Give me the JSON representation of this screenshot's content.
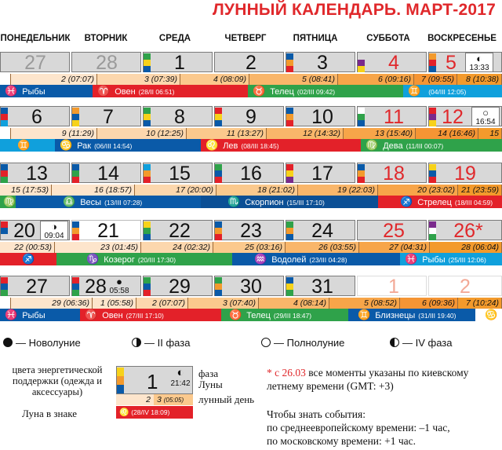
{
  "title": "ЛУННЫЙ КАЛЕНДАРЬ. МАРТ-2017",
  "weekdays": [
    "ПОНЕДЕЛЬНИК",
    "ВТОРНИК",
    "СРЕДА",
    "ЧЕТВЕРГ",
    "ПЯТНИЦА",
    "СУББОТА",
    "ВОСКРЕСЕНЬЕ"
  ],
  "colors": {
    "orange": "#f39a2c",
    "red": "#e32129",
    "green": "#2fa24a",
    "blue": "#0a5aa8",
    "light_blue": "#10a0dc",
    "yellow": "#f7d21a",
    "purple": "#7a2a8c",
    "gray_cell": "#d8d8d8"
  },
  "weeks": [
    {
      "days": [
        "27",
        "28",
        "1",
        "2",
        "3",
        "4",
        "5"
      ],
      "phase": {
        "icon": "waxing-first-quarter-icon",
        "time": "13:33"
      },
      "lunar_days": [
        "2 (07:07)",
        "3 (07:39)",
        "4 (08:09)",
        "5 (08:41)",
        "6 (09:16)",
        "7 (09:55)",
        "8 (10:38)"
      ],
      "zodiac": [
        {
          "sym": "♓",
          "name": "Рыбы",
          "time": ""
        },
        {
          "sym": "♈",
          "name": "Овен",
          "time": "(28/II 06:51)"
        },
        {
          "sym": "♉",
          "name": "Телец",
          "time": "(02/III 09:42)"
        },
        {
          "sym": "♊",
          "name": "",
          "time": "(04/III 12:05)"
        }
      ]
    },
    {
      "days": [
        "6",
        "7",
        "8",
        "9",
        "10",
        "11",
        "12"
      ],
      "phase": {
        "icon": "full-moon-icon",
        "time": "16:54"
      },
      "lunar_days": [
        "9 (11:29)",
        "10 (12:25)",
        "11 (13:27)",
        "12 (14:32)",
        "13 (15:40)",
        "14 (16:46)",
        "15"
      ],
      "zodiac": [
        {
          "sym": "♊",
          "name": "",
          "time": ""
        },
        {
          "sym": "♋",
          "name": "Рак",
          "time": "(06/III 14:54)"
        },
        {
          "sym": "♌",
          "name": "Лев",
          "time": "(08/III 18:45)"
        },
        {
          "sym": "♍",
          "name": "Дева",
          "time": "(11/III 00:07)"
        }
      ]
    },
    {
      "days": [
        "13",
        "14",
        "15",
        "16",
        "17",
        "18",
        "19"
      ],
      "lunar_days": [
        "15 (17:53)",
        "16 (18:57)",
        "17 (20:00)",
        "18 (21:02)",
        "19 (22:03)",
        "20 (23:02)",
        "21 (23:59)"
      ],
      "zodiac": [
        {
          "sym": "♍",
          "name": "",
          "time": ""
        },
        {
          "sym": "♎",
          "name": "Весы",
          "time": "(13/III 07:28)"
        },
        {
          "sym": "♏",
          "name": "Скорпион",
          "time": "(15/III 17:10)"
        },
        {
          "sym": "♐",
          "name": "Стрелец",
          "time": "(18/III 04:59)"
        }
      ]
    },
    {
      "days": [
        "20",
        "21",
        "22",
        "23",
        "24",
        "25",
        "26*"
      ],
      "phase": {
        "icon": "last-quarter-icon",
        "time": "09:04"
      },
      "lunar_days": [
        "22 (00:53)",
        "23 (01:45)",
        "24 (02:32)",
        "25 (03:16)",
        "26 (03:55)",
        "27 (04:31)",
        "28 (06:04)"
      ],
      "zodiac": [
        {
          "sym": "♐",
          "name": "",
          "time": ""
        },
        {
          "sym": "♑",
          "name": "Козерог",
          "time": "(20/III 17:30)"
        },
        {
          "sym": "♒",
          "name": "Водолей",
          "time": "(23/III 04:28)"
        },
        {
          "sym": "♓",
          "name": "Рыбы",
          "time": "(25/III 12:06)"
        }
      ]
    },
    {
      "days": [
        "27",
        "28",
        "29",
        "30",
        "31",
        "1",
        "2"
      ],
      "phase": {
        "icon": "new-moon-icon",
        "time": "05:58"
      },
      "lunar_days": [
        "29 (06:36)",
        "1 (05:58)",
        "2 (07:07)",
        "3 (07:40)",
        "4 (08:14)",
        "5 (08:52)",
        "6 (09:36)",
        "7 (10:24)"
      ],
      "zodiac": [
        {
          "sym": "♓",
          "name": "Рыбы",
          "time": ""
        },
        {
          "sym": "♈",
          "name": "Овен",
          "time": "(27/III 17:10)"
        },
        {
          "sym": "♉",
          "name": "Телец",
          "time": "(29/III 18:47)"
        },
        {
          "sym": "♊",
          "name": "Близнецы",
          "time": "(31/III 19:40)"
        },
        {
          "sym": "♋",
          "name": "",
          "time": ""
        }
      ]
    }
  ],
  "legend": {
    "new_moon": "— Новолуние",
    "second_phase": "— II фаза",
    "full_moon": "— Полнолуние",
    "fourth_phase": "— IV фаза"
  },
  "key": {
    "energy_colors": "цвета энергетической поддержки (одежда и аксессуары)",
    "phase": "фаза",
    "moon_rise": "Луны",
    "lunar_day": "лунный день",
    "moon_in_sign": "Луна в знаке",
    "sample_day": "1",
    "sample_time": "21:42",
    "sample_lunar_a": "2",
    "sample_lunar_b": "3",
    "sample_lunar_b_time": "(05:05)",
    "sample_sign_sym": "♌",
    "sample_sign_time": "(28/IV 18:09)"
  },
  "notes": {
    "note1_star": "* с 26.03",
    "note1_rest": " все моменты указаны по киевскому летнему времени (GMT: +3)",
    "note2": "Чтобы знать события:",
    "note3": "по среднеевропейскому времени: –1 час,",
    "note4": "по московскому времени: +1 час."
  }
}
